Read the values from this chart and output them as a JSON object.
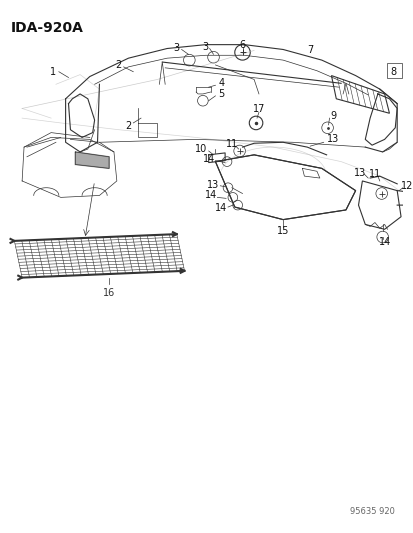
{
  "title": "IDA-920A",
  "watermark": "95635 920",
  "bg_color": "#ffffff",
  "fig_width": 4.14,
  "fig_height": 5.33,
  "dpi": 100,
  "line_color": "#333333",
  "light_color": "#aaaaaa"
}
